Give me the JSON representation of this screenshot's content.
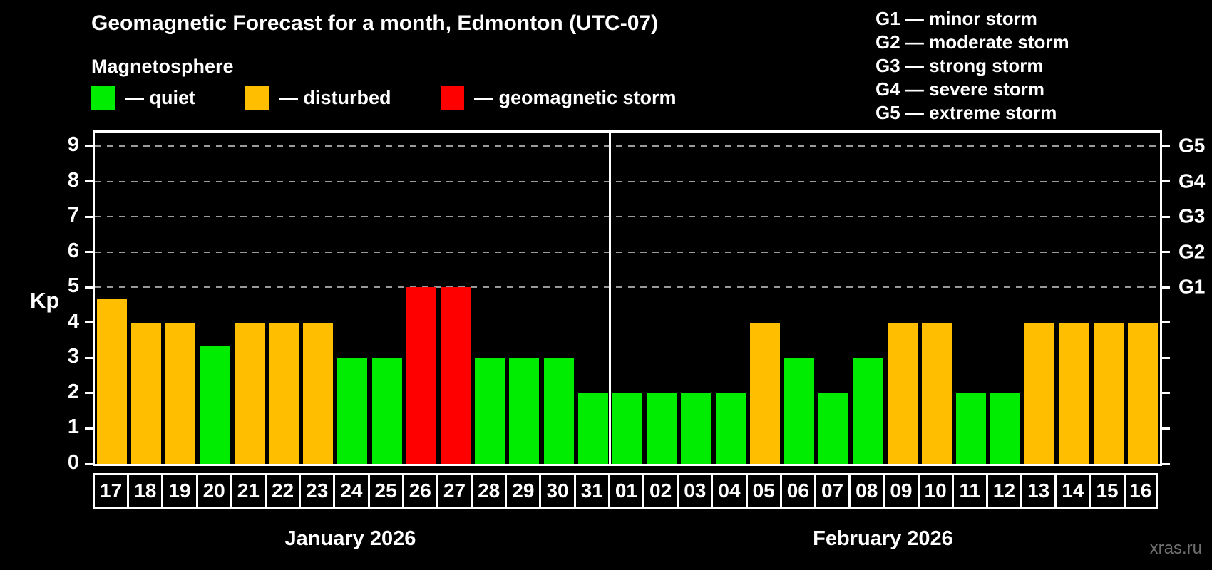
{
  "header": {
    "title": "Geomagnetic Forecast for a month, Edmonton (UTC-07)",
    "subtitle": "Magnetosphere"
  },
  "legend": {
    "items": [
      {
        "label": "— quiet",
        "status": "quiet",
        "x": 0
      },
      {
        "label": "— disturbed",
        "status": "disturbed",
        "x": 216
      },
      {
        "label": "— geomagnetic storm",
        "status": "storm",
        "x": 490
      }
    ]
  },
  "g_legend": {
    "items": [
      {
        "text": "G1 — minor storm"
      },
      {
        "text": "G2 — moderate storm"
      },
      {
        "text": "G3 — strong storm"
      },
      {
        "text": "G4 — severe storm"
      },
      {
        "text": "G5 — extreme storm"
      }
    ]
  },
  "watermark": "xras.ru",
  "chart_data": {
    "type": "bar",
    "title": "Geomagnetic Forecast for a month, Edmonton (UTC-07)",
    "ylabel": "Kp",
    "ylim": [
      0,
      9
    ],
    "yticks": [
      0,
      1,
      2,
      3,
      4,
      5,
      6,
      7,
      8,
      9
    ],
    "gridlines_at": [
      5,
      6,
      7,
      8,
      9
    ],
    "grid": "dashed, only at G-storm levels 5-9",
    "right_axis": [
      {
        "kp": 5,
        "label": "G1"
      },
      {
        "kp": 6,
        "label": "G2"
      },
      {
        "kp": 7,
        "label": "G3"
      },
      {
        "kp": 8,
        "label": "G4"
      },
      {
        "kp": 9,
        "label": "G5"
      }
    ],
    "status_colors": {
      "quiet": "#00EC00",
      "disturbed": "#FFBE00",
      "storm": "#FF0000"
    },
    "months": [
      {
        "label": "January 2026",
        "days": [
          {
            "day": "17",
            "kp": 4.67,
            "status": "disturbed"
          },
          {
            "day": "18",
            "kp": 4,
            "status": "disturbed"
          },
          {
            "day": "19",
            "kp": 4,
            "status": "disturbed"
          },
          {
            "day": "20",
            "kp": 3.33,
            "status": "quiet"
          },
          {
            "day": "21",
            "kp": 4,
            "status": "disturbed"
          },
          {
            "day": "22",
            "kp": 4,
            "status": "disturbed"
          },
          {
            "day": "23",
            "kp": 4,
            "status": "disturbed"
          },
          {
            "day": "24",
            "kp": 3,
            "status": "quiet"
          },
          {
            "day": "25",
            "kp": 3,
            "status": "quiet"
          },
          {
            "day": "26",
            "kp": 5,
            "status": "storm"
          },
          {
            "day": "27",
            "kp": 5,
            "status": "storm"
          },
          {
            "day": "28",
            "kp": 3,
            "status": "quiet"
          },
          {
            "day": "29",
            "kp": 3,
            "status": "quiet"
          },
          {
            "day": "30",
            "kp": 3,
            "status": "quiet"
          },
          {
            "day": "31",
            "kp": 2,
            "status": "quiet"
          }
        ]
      },
      {
        "label": "February 2026",
        "days": [
          {
            "day": "01",
            "kp": 2,
            "status": "quiet"
          },
          {
            "day": "02",
            "kp": 2,
            "status": "quiet"
          },
          {
            "day": "03",
            "kp": 2,
            "status": "quiet"
          },
          {
            "day": "04",
            "kp": 2,
            "status": "quiet"
          },
          {
            "day": "05",
            "kp": 4,
            "status": "disturbed"
          },
          {
            "day": "06",
            "kp": 3,
            "status": "quiet"
          },
          {
            "day": "07",
            "kp": 2,
            "status": "quiet"
          },
          {
            "day": "08",
            "kp": 3,
            "status": "quiet"
          },
          {
            "day": "09",
            "kp": 4,
            "status": "disturbed"
          },
          {
            "day": "10",
            "kp": 4,
            "status": "disturbed"
          },
          {
            "day": "11",
            "kp": 2,
            "status": "quiet"
          },
          {
            "day": "12",
            "kp": 2,
            "status": "quiet"
          },
          {
            "day": "13",
            "kp": 4,
            "status": "disturbed"
          },
          {
            "day": "14",
            "kp": 4,
            "status": "disturbed"
          },
          {
            "day": "15",
            "kp": 4,
            "status": "disturbed"
          },
          {
            "day": "16",
            "kp": 4,
            "status": "disturbed"
          }
        ]
      }
    ]
  }
}
